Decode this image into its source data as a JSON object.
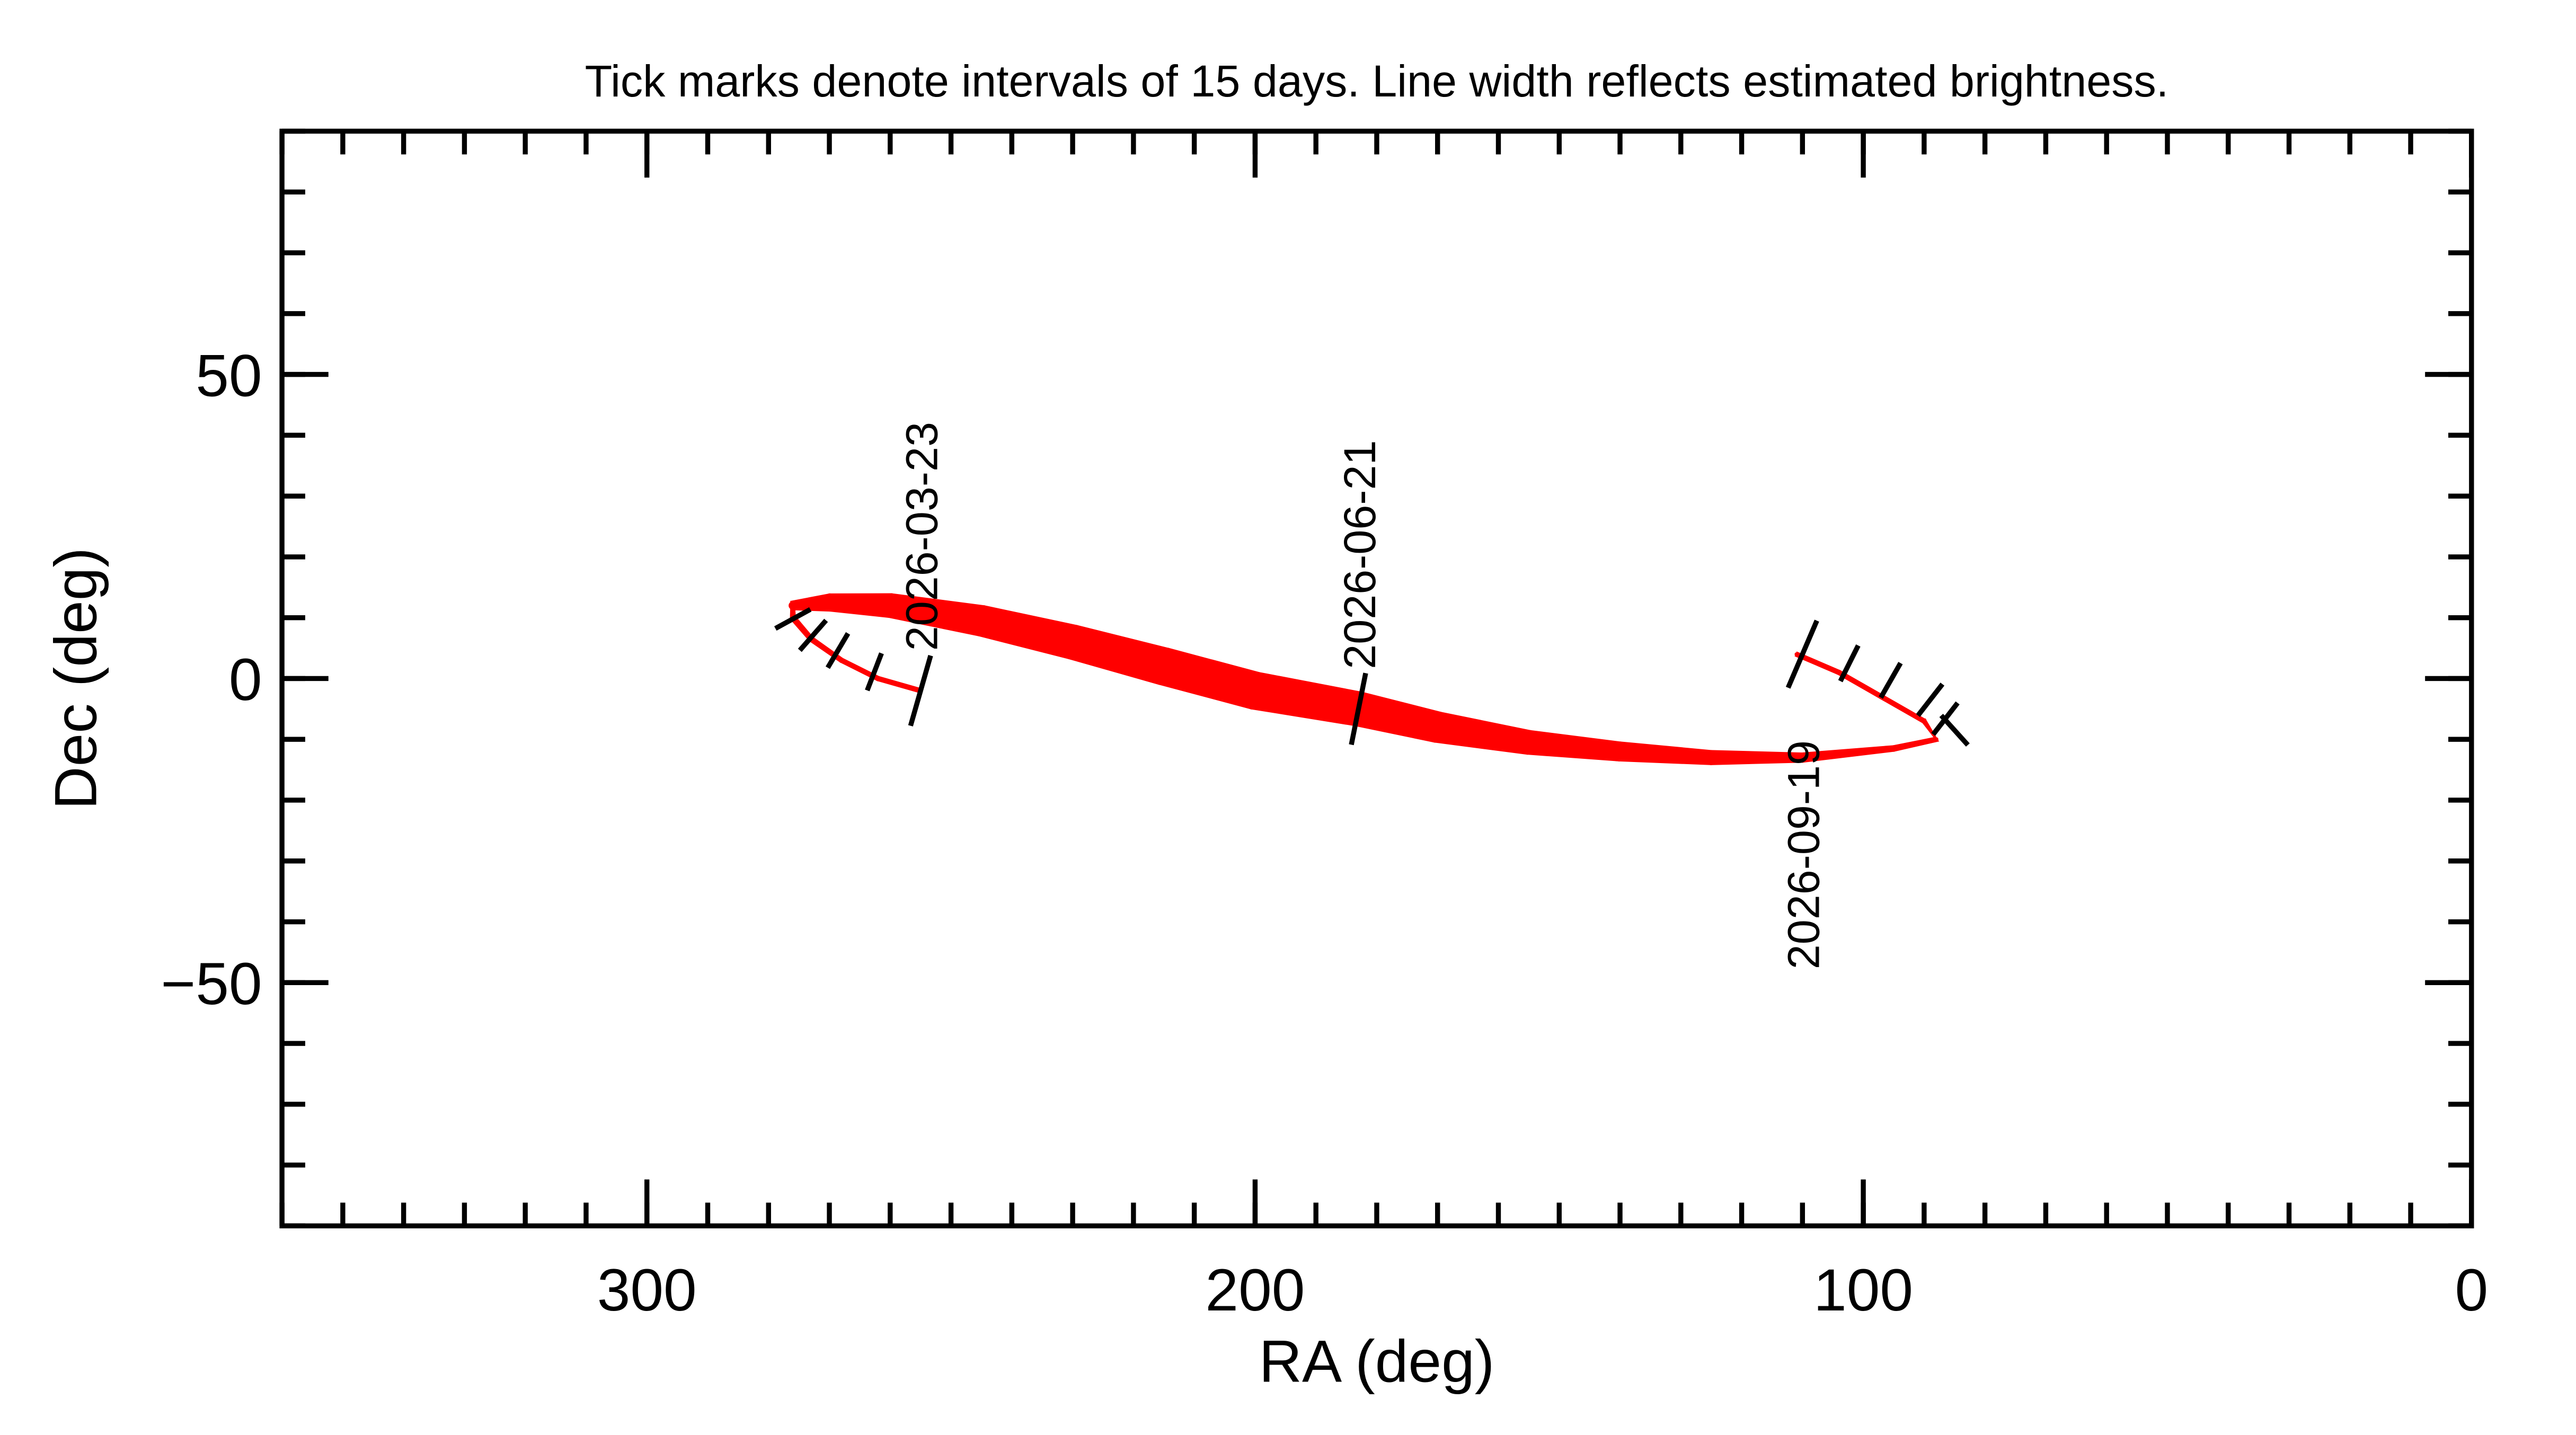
{
  "chart_data": {
    "type": "track",
    "title": "Tick marks denote intervals of 15 days.  Line width reflects estimated brightness.",
    "xlabel": "RA (deg)",
    "ylabel": "Dec (deg)",
    "xlim": [
      360,
      0
    ],
    "xticks": [
      300,
      200,
      100,
      0
    ],
    "x_minor_step": 10,
    "ylim": [
      -90,
      90
    ],
    "yticks": [
      {
        "value": -50,
        "label": "−50"
      },
      0,
      50
    ],
    "y_minor_step": 10,
    "series": [
      {
        "color": "#ff0000",
        "x": [
          255,
          262,
          268,
          273,
          276,
          276,
          270,
          260,
          245,
          230,
          215,
          200,
          183,
          170,
          155,
          140,
          125,
          110,
          95,
          88,
          90,
          97,
          104,
          111
        ],
        "y": [
          -2,
          0,
          3,
          6.5,
          10,
          12,
          12.5,
          12,
          9.5,
          6,
          2,
          -2,
          -5,
          -8,
          -10.5,
          -12,
          -13,
          -13,
          -11.5,
          -10,
          -7,
          -3,
          1,
          4
        ],
        "sizes": [
          0.6,
          0.6,
          0.6,
          0.7,
          0.8,
          1.4,
          2.7,
          3.8,
          4.9,
          5.5,
          6,
          6,
          5.5,
          4.9,
          3.8,
          3,
          2.2,
          1.4,
          0.8,
          0.7,
          0.6,
          0.6,
          0.6,
          0.6
        ]
      }
    ],
    "interval_ticks": {
      "x": [
        276,
        272.7,
        268.6,
        262.6,
        102.3,
        95.5,
        89,
        86.5,
        85
      ],
      "y": [
        9.8,
        7.1,
        4.6,
        1.1,
        2.5,
        -0.3,
        -3.5,
        -6.6,
        -8.5
      ]
    },
    "date_labels": [
      {
        "label": "2026-03-23",
        "x": 255,
        "y": -2,
        "position": "above"
      },
      {
        "label": "2026-06-21",
        "x": 183,
        "y": -5,
        "position": "above"
      },
      {
        "label": "2026-09-19",
        "x": 110,
        "y": 4,
        "position": "below"
      }
    ]
  }
}
